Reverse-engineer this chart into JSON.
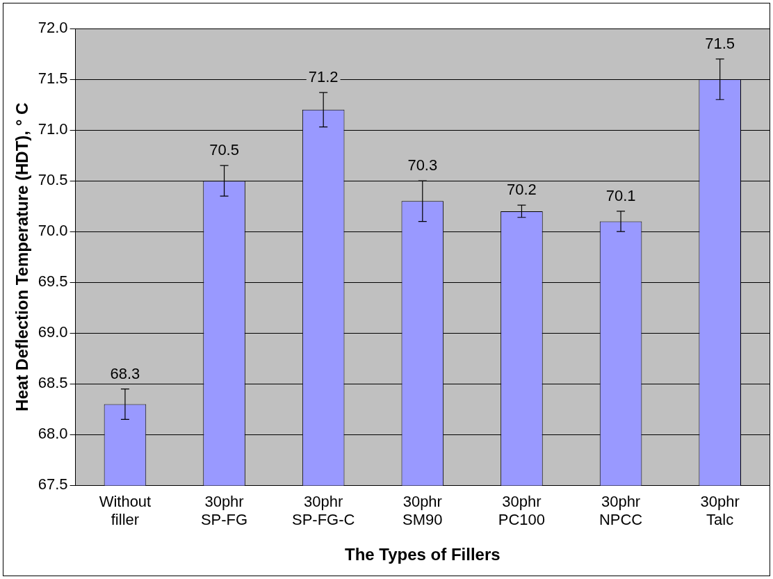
{
  "chart_data": {
    "type": "bar",
    "xlabel": "The Types of Fillers",
    "ylabel": "Heat Deflection Temperature (HDT), ° C",
    "categories": [
      "Without filler",
      "30phr SP-FG",
      "30phr SP-FG-C",
      "30phr SM90",
      "30phr PC100",
      "30phr NPCC",
      "30phr Talc"
    ],
    "values": [
      68.3,
      70.5,
      71.2,
      70.3,
      70.2,
      70.1,
      71.5
    ],
    "errors": [
      0.15,
      0.15,
      0.17,
      0.2,
      0.06,
      0.1,
      0.2
    ],
    "color": "#9999ff",
    "data_labels": true,
    "grid": "y",
    "legend": false,
    "ylim": [
      67.5,
      72.0
    ],
    "yticks": [
      {
        "value": 67.5,
        "label": "67.5"
      },
      {
        "value": 68,
        "label": "68.0"
      },
      {
        "value": 68.5,
        "label": "68.5"
      },
      {
        "value": 69,
        "label": "69.0"
      },
      {
        "value": 69.5,
        "label": "69.5"
      },
      {
        "value": 70,
        "label": "70.0"
      },
      {
        "value": 70.5,
        "label": "70.5"
      },
      {
        "value": 71,
        "label": "71.0"
      },
      {
        "value": 71.5,
        "label": "71.5"
      },
      {
        "value": 72,
        "label": "72.0"
      }
    ]
  }
}
